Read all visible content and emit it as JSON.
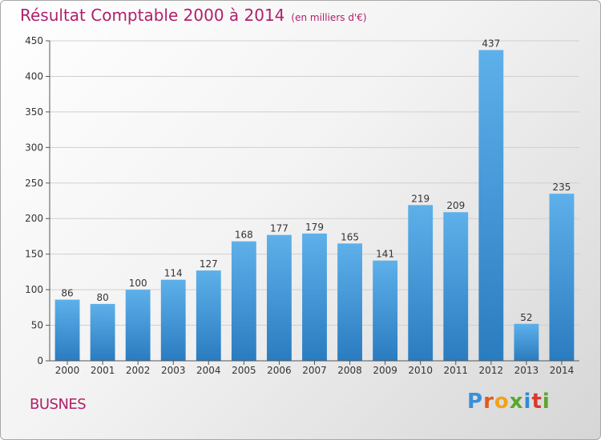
{
  "title": "Résultat Comptable 2000 à 2014",
  "subtitle": "(en milliers d'€)",
  "commune": "BUSNES",
  "logo": {
    "letters": [
      {
        "ch": "P",
        "color": "#3a8fd9"
      },
      {
        "ch": "r",
        "color": "#e05a1e"
      },
      {
        "ch": "o",
        "color": "#f0a21a"
      },
      {
        "ch": "x",
        "color": "#5aa62e"
      },
      {
        "ch": "i",
        "color": "#2e8bd6"
      },
      {
        "ch": "t",
        "color": "#d63a2e"
      },
      {
        "ch": "i",
        "color": "#5aa62e"
      }
    ]
  },
  "colors": {
    "bar_light": "#5eb0ea",
    "bar_dark": "#2a7cc0",
    "title": "#b0206a"
  },
  "chart_data": {
    "type": "bar",
    "title": "Résultat Comptable 2000 à 2014",
    "unit": "(en milliers d'€)",
    "categories": [
      "2000",
      "2001",
      "2002",
      "2003",
      "2004",
      "2005",
      "2006",
      "2007",
      "2008",
      "2009",
      "2010",
      "2011",
      "2012",
      "2013",
      "2014"
    ],
    "values": [
      86,
      80,
      100,
      114,
      127,
      168,
      177,
      179,
      165,
      141,
      219,
      209,
      437,
      52,
      235
    ],
    "ylim": [
      0,
      450
    ],
    "yticks": [
      0,
      50,
      100,
      150,
      200,
      250,
      300,
      350,
      400,
      450
    ],
    "grid": true
  }
}
